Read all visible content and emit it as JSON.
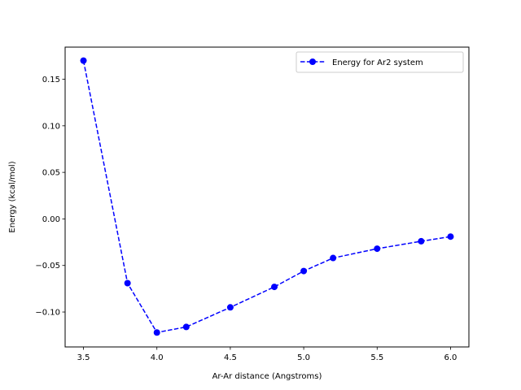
{
  "chart_data": {
    "type": "line",
    "title": "",
    "xlabel": "Ar-Ar distance (Angstroms)",
    "ylabel": "Energy (kcal/mol)",
    "xlim": [
      3.375,
      6.125
    ],
    "ylim": [
      -0.1375,
      0.1845
    ],
    "xticks": [
      3.5,
      4.0,
      4.5,
      5.0,
      5.5,
      6.0
    ],
    "xtick_labels": [
      "3.5",
      "4.0",
      "4.5",
      "5.0",
      "5.5",
      "6.0"
    ],
    "yticks": [
      -0.1,
      -0.05,
      0.0,
      0.05,
      0.1,
      0.15
    ],
    "ytick_labels": [
      "−0.10",
      "−0.05",
      "0.00",
      "0.05",
      "0.10",
      "0.15"
    ],
    "grid": false,
    "legend_position": "upper-right",
    "series": [
      {
        "name": "Energy for Ar2 system",
        "color": "#0000ff",
        "line_style": "dashed",
        "marker": "circle",
        "x": [
          3.5,
          3.8,
          4.0,
          4.2,
          4.5,
          4.8,
          5.0,
          5.2,
          5.5,
          5.8,
          6.0
        ],
        "y": [
          0.17,
          -0.069,
          -0.122,
          -0.116,
          -0.095,
          -0.073,
          -0.056,
          -0.042,
          -0.032,
          -0.024,
          -0.019
        ]
      }
    ]
  }
}
